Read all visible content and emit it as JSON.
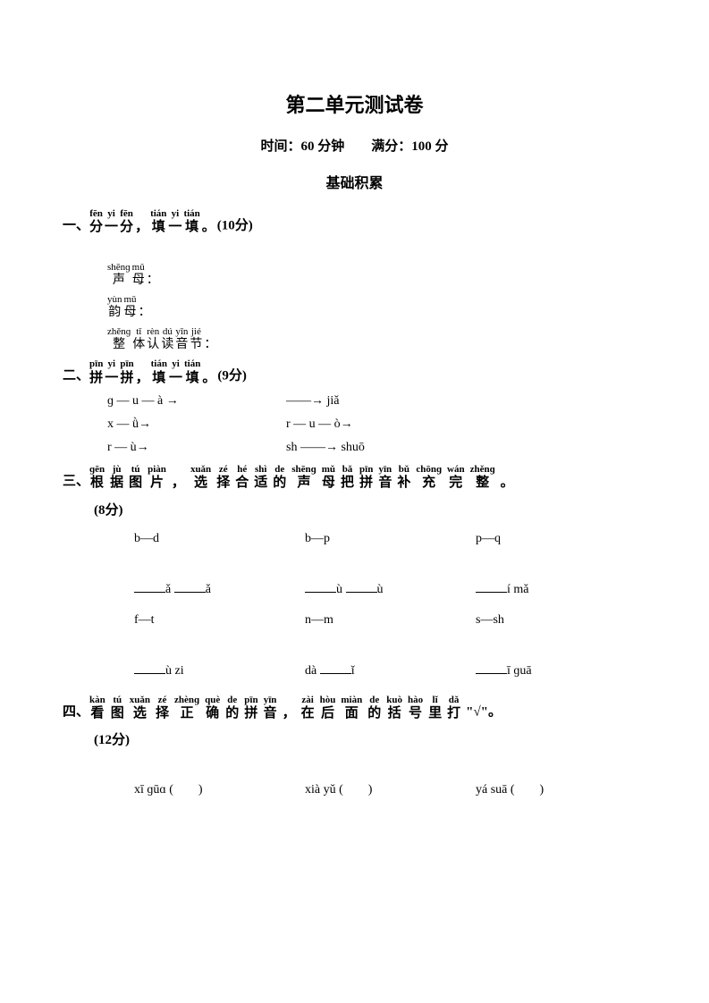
{
  "title": "第二单元测试卷",
  "subtitle_time_label": "时间：",
  "subtitle_time": "60",
  "subtitle_time_unit": "分钟",
  "subtitle_score_label": "满分：",
  "subtitle_score": "100",
  "subtitle_score_unit": "分",
  "section_header": "基础积累",
  "q1": {
    "prefix": "一、",
    "ruby": [
      {
        "p": "fēn",
        "c": "分"
      },
      {
        "p": "yi",
        "c": "一"
      },
      {
        "p": "fēn",
        "c": "分"
      },
      {
        "p": "",
        "c": "，"
      },
      {
        "p": "tián",
        "c": "填"
      },
      {
        "p": "yi",
        "c": "一"
      },
      {
        "p": "tián",
        "c": "填"
      },
      {
        "p": "",
        "c": "。"
      }
    ],
    "points": "(10分)",
    "lines": [
      {
        "ruby": [
          {
            "p": "shēnɡ",
            "c": "声"
          },
          {
            "p": "mǔ",
            "c": "母"
          },
          {
            "p": "",
            "c": "："
          }
        ]
      },
      {
        "ruby": [
          {
            "p": "yùn",
            "c": "韵"
          },
          {
            "p": "mǔ",
            "c": "母"
          },
          {
            "p": "",
            "c": "："
          }
        ]
      },
      {
        "ruby": [
          {
            "p": "zhěnɡ",
            "c": "整"
          },
          {
            "p": "tǐ",
            "c": "体"
          },
          {
            "p": "rèn",
            "c": "认"
          },
          {
            "p": "dú",
            "c": "读"
          },
          {
            "p": "yīn",
            "c": "音"
          },
          {
            "p": "jié",
            "c": "节"
          },
          {
            "p": "",
            "c": "："
          }
        ]
      }
    ]
  },
  "q2": {
    "prefix": "二、",
    "ruby": [
      {
        "p": "pīn",
        "c": "拼"
      },
      {
        "p": "yi",
        "c": "一"
      },
      {
        "p": "pīn",
        "c": "拼"
      },
      {
        "p": "",
        "c": "，"
      },
      {
        "p": "tián",
        "c": "填"
      },
      {
        "p": "yi",
        "c": "一"
      },
      {
        "p": "tián",
        "c": "填"
      },
      {
        "p": "",
        "c": "。"
      }
    ],
    "points": "(9分)",
    "rows": [
      {
        "left": "ɡ — u — à →",
        "right_pre": "",
        "right_arrow": "——→",
        "right_post": " jiǎ"
      },
      {
        "left": "x — ǜ→",
        "right_pre": "r — u — ò→",
        "right_arrow": "",
        "right_post": ""
      },
      {
        "left": "r — ù→",
        "right_pre": "sh ",
        "right_arrow": "——→",
        "right_post": " shuō"
      }
    ]
  },
  "q3": {
    "prefix": "三、",
    "ruby": [
      {
        "p": "ɡēn",
        "c": "根"
      },
      {
        "p": "jù",
        "c": "据"
      },
      {
        "p": "tú",
        "c": "图"
      },
      {
        "p": "piàn",
        "c": "片"
      },
      {
        "p": "",
        "c": "，"
      },
      {
        "p": "xuǎn",
        "c": "选"
      },
      {
        "p": "zé",
        "c": "择"
      },
      {
        "p": "hé",
        "c": "合"
      },
      {
        "p": "shì",
        "c": "适"
      },
      {
        "p": "de",
        "c": "的"
      },
      {
        "p": "shēnɡ",
        "c": "声"
      },
      {
        "p": "mǔ",
        "c": "母"
      },
      {
        "p": "bǎ",
        "c": "把"
      },
      {
        "p": "pīn",
        "c": "拼"
      },
      {
        "p": "yīn",
        "c": "音"
      },
      {
        "p": "bǔ",
        "c": "补"
      },
      {
        "p": "chōnɡ",
        "c": "充"
      },
      {
        "p": "wán",
        "c": "完"
      },
      {
        "p": "zhěnɡ",
        "c": "整"
      },
      {
        "p": "",
        "c": "。"
      }
    ],
    "points": "(8分)",
    "row1": [
      "b—d",
      "b—p",
      "p—q"
    ],
    "row2": [
      {
        "b1": "ǎ",
        "b2": "ǎ"
      },
      {
        "b1": "ù",
        "b2": "ù"
      },
      {
        "b1": "í",
        "suffix": " mǎ"
      }
    ],
    "row3": [
      "f—t",
      "n—m",
      "s—sh"
    ],
    "row4": [
      {
        "b1": "ù",
        "suffix": " zi"
      },
      {
        "pre": "dà ",
        "b1": "ǐ"
      },
      {
        "b1": "ī",
        "suffix": " ɡuā"
      }
    ]
  },
  "q4": {
    "prefix": "四、",
    "ruby": [
      {
        "p": "kàn",
        "c": "看"
      },
      {
        "p": "tú",
        "c": "图"
      },
      {
        "p": "xuǎn",
        "c": "选"
      },
      {
        "p": "zé",
        "c": "择"
      },
      {
        "p": "zhènɡ",
        "c": "正"
      },
      {
        "p": "què",
        "c": "确"
      },
      {
        "p": "de",
        "c": "的"
      },
      {
        "p": "pīn",
        "c": "拼"
      },
      {
        "p": "yīn",
        "c": "音"
      },
      {
        "p": "",
        "c": "，"
      },
      {
        "p": "zài",
        "c": "在"
      },
      {
        "p": "hòu",
        "c": "后"
      },
      {
        "p": "miàn",
        "c": "面"
      },
      {
        "p": "de",
        "c": "的"
      },
      {
        "p": "kuò",
        "c": "括"
      },
      {
        "p": "hào",
        "c": "号"
      },
      {
        "p": "lǐ",
        "c": "里"
      },
      {
        "p": "dǎ",
        "c": "打"
      }
    ],
    "tail": "\"√\"。",
    "points": "(12分)",
    "row": [
      "xī ɡūɑ (　　)",
      "xià yǔ (　　)",
      "yá suā (　　)"
    ]
  }
}
